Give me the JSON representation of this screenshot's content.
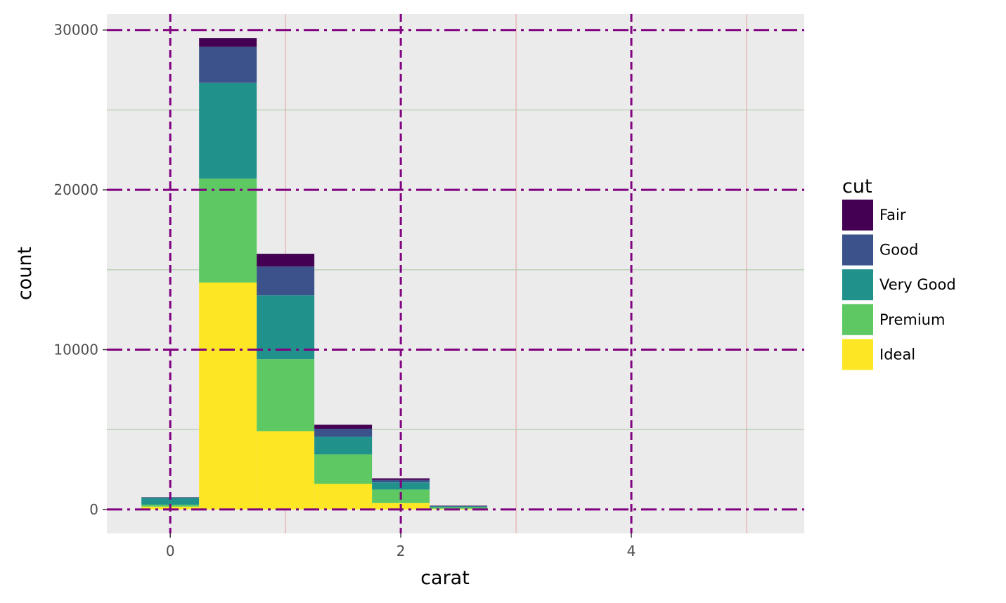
{
  "chart_data": {
    "type": "bar",
    "stacked": true,
    "xlabel": "carat",
    "ylabel": "count",
    "xlim": [
      -0.55,
      5.5
    ],
    "ylim": [
      -1500,
      31000
    ],
    "x_ticks": [
      0,
      2,
      4
    ],
    "x_tick_labels": [
      "0",
      "2",
      "4"
    ],
    "y_ticks": [
      0,
      10000,
      20000,
      30000
    ],
    "y_tick_labels": [
      "0",
      "10000",
      "20000",
      "30000"
    ],
    "x_minor_ticks": [
      1,
      3,
      5
    ],
    "y_minor_ticks": [
      5000,
      15000,
      25000
    ],
    "bin_edges": [
      -0.25,
      0.25,
      0.75,
      1.25,
      1.75,
      2.25,
      2.75
    ],
    "series": [
      {
        "name": "Ideal",
        "color": "#fde725",
        "values": [
          180,
          14200,
          4900,
          1600,
          400,
          50
        ]
      },
      {
        "name": "Premium",
        "color": "#5ec962",
        "values": [
          120,
          6500,
          4500,
          1850,
          850,
          80
        ]
      },
      {
        "name": "Very Good",
        "color": "#21918c",
        "values": [
          420,
          6000,
          4000,
          1100,
          450,
          60
        ]
      },
      {
        "name": "Good",
        "color": "#3b528b",
        "values": [
          40,
          2250,
          1800,
          500,
          150,
          30
        ]
      },
      {
        "name": "Fair",
        "color": "#440154",
        "values": [
          10,
          550,
          800,
          250,
          100,
          20
        ]
      }
    ],
    "legend": {
      "title": "cut",
      "placement": "right",
      "order": [
        "Fair",
        "Good",
        "Very Good",
        "Premium",
        "Ideal"
      ]
    },
    "grid": {
      "major": {
        "color": "#800080",
        "x_style": "dashed",
        "y_style": "dashdot"
      },
      "minor": {
        "x_color": "#e8a0a0",
        "y_color": "#a8c8a0"
      }
    },
    "panel_background": "#ebebeb"
  }
}
